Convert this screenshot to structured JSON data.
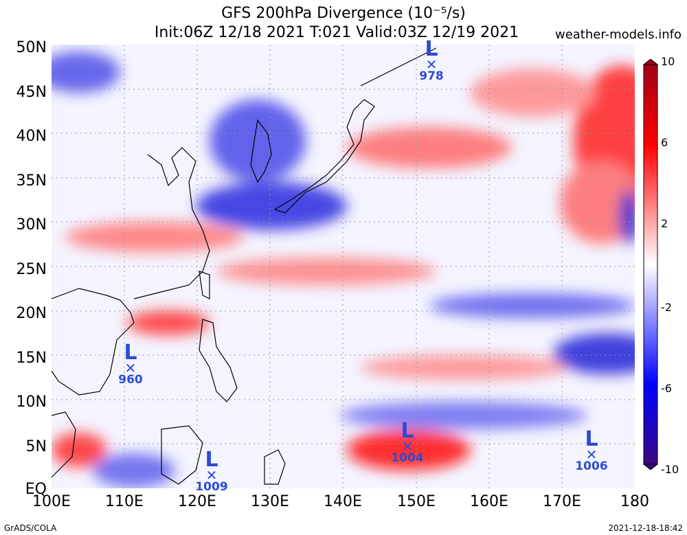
{
  "title_line1": "GFS 200hPa Divergence (10⁻⁵/s)",
  "title_line2": "Init:06Z 12/18 2021 T:021 Valid:03Z 12/19 2021",
  "site": "weather-models.info",
  "y_labels": [
    "50N",
    "45N",
    "40N",
    "35N",
    "30N",
    "25N",
    "20N",
    "15N",
    "10N",
    "5N",
    "EQ"
  ],
  "x_labels": [
    "100E",
    "110E",
    "120E",
    "130E",
    "140E",
    "150E",
    "160E",
    "170E",
    "180"
  ],
  "colorbar_labels": [
    "10",
    "6",
    "2",
    "-2",
    "-6",
    "-10"
  ],
  "colors": {
    "positive": "#e8000b",
    "negative": "#1a13d0",
    "neutral": "#ffffff",
    "marker": "#2b4ad6",
    "coast": "#000000"
  },
  "systems": [
    {
      "type": "L",
      "pressure": "978",
      "lon": 152.5,
      "lat": 48
    },
    {
      "type": "L",
      "pressure": "960",
      "lon": 110.8,
      "lat": 13.3
    },
    {
      "type": "L",
      "pressure": "1009",
      "lon": 122.2,
      "lat": 0.7
    },
    {
      "type": "L",
      "pressure": "1004",
      "lon": 148.8,
      "lat": 4.1
    },
    {
      "type": "L",
      "pressure": "1006",
      "lon": 174.0,
      "lat": 3.0
    }
  ],
  "credit": "GrADS/COLA",
  "timestamp": "2021-12-18-18:42"
}
